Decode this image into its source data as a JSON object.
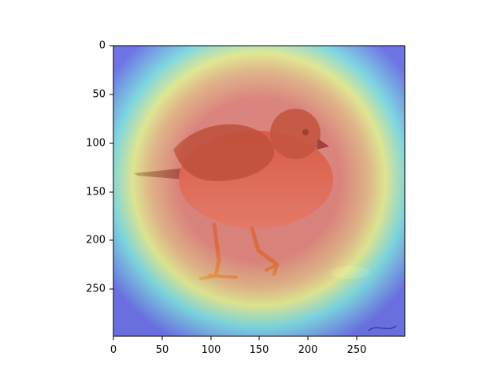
{
  "figure": {
    "title": "",
    "image_description": "Photo of a small shorebird (sandpiper/turnstone-like) standing on wet sand with a heatmap overlay",
    "colormap": "jet",
    "overlay_colors": {
      "low": "#3b3fe6",
      "mid_low": "#4fd6e0",
      "mid": "#e9ef6a",
      "high": "#e65a4a"
    }
  },
  "axes": {
    "x": {
      "min": 0,
      "max": 300,
      "ticks": [
        "0",
        "50",
        "100",
        "150",
        "200",
        "250"
      ]
    },
    "y": {
      "min": 0,
      "max": 300,
      "ticks": [
        "0",
        "50",
        "100",
        "150",
        "200",
        "250"
      ]
    }
  }
}
